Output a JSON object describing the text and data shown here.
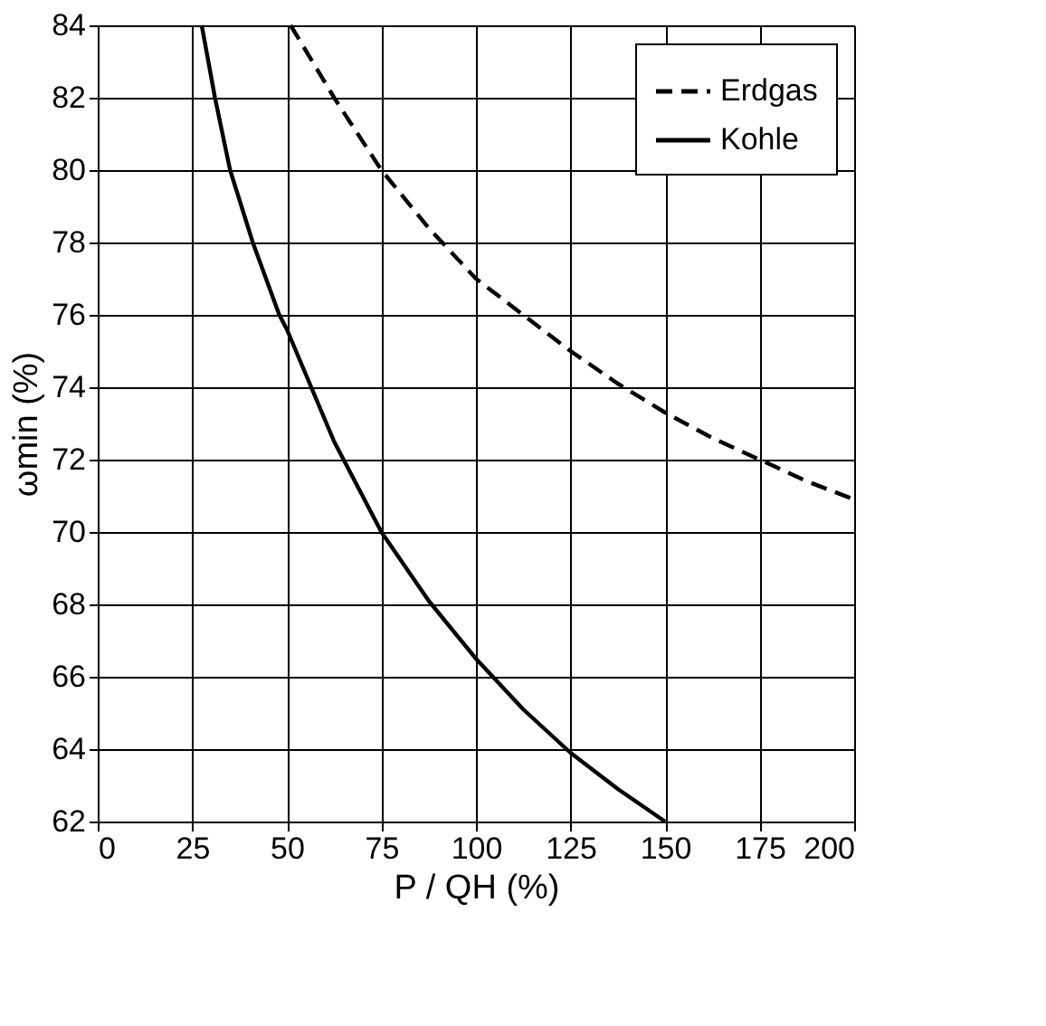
{
  "chart_data": {
    "type": "line",
    "xlabel": "P / QH (%)",
    "ylabel": "ωmin (%)",
    "xlim": [
      0,
      200
    ],
    "xticks": [
      0,
      25,
      50,
      75,
      100,
      125,
      150,
      175,
      200
    ],
    "ylim": [
      62,
      84
    ],
    "yticks": [
      62,
      64,
      66,
      68,
      70,
      72,
      74,
      76,
      78,
      80,
      82,
      84
    ],
    "grid": true,
    "legend": "top right",
    "marker": "none",
    "series": [
      {
        "name": "Erdgas",
        "color": "#000000",
        "line_style": "dashed",
        "x": [
          51,
          62.5,
          75,
          87.5,
          100,
          112.5,
          125,
          137.5,
          150,
          162.5,
          175,
          187.5,
          200
        ],
        "values": [
          84,
          82,
          80,
          78.4,
          77,
          76,
          75,
          74.1,
          73.3,
          72.6,
          72,
          71.4,
          70.9
        ]
      },
      {
        "name": "Kohle",
        "color": "#000000",
        "line_style": "solid",
        "x": [
          27.5,
          31,
          35,
          41,
          48,
          50,
          62.5,
          75,
          87.5,
          100,
          112.5,
          125,
          137.5,
          150
        ],
        "values": [
          84,
          82,
          80,
          78,
          76,
          75.6,
          72.5,
          70,
          68.1,
          66.5,
          65.1,
          63.9,
          62.9,
          62
        ]
      }
    ]
  }
}
